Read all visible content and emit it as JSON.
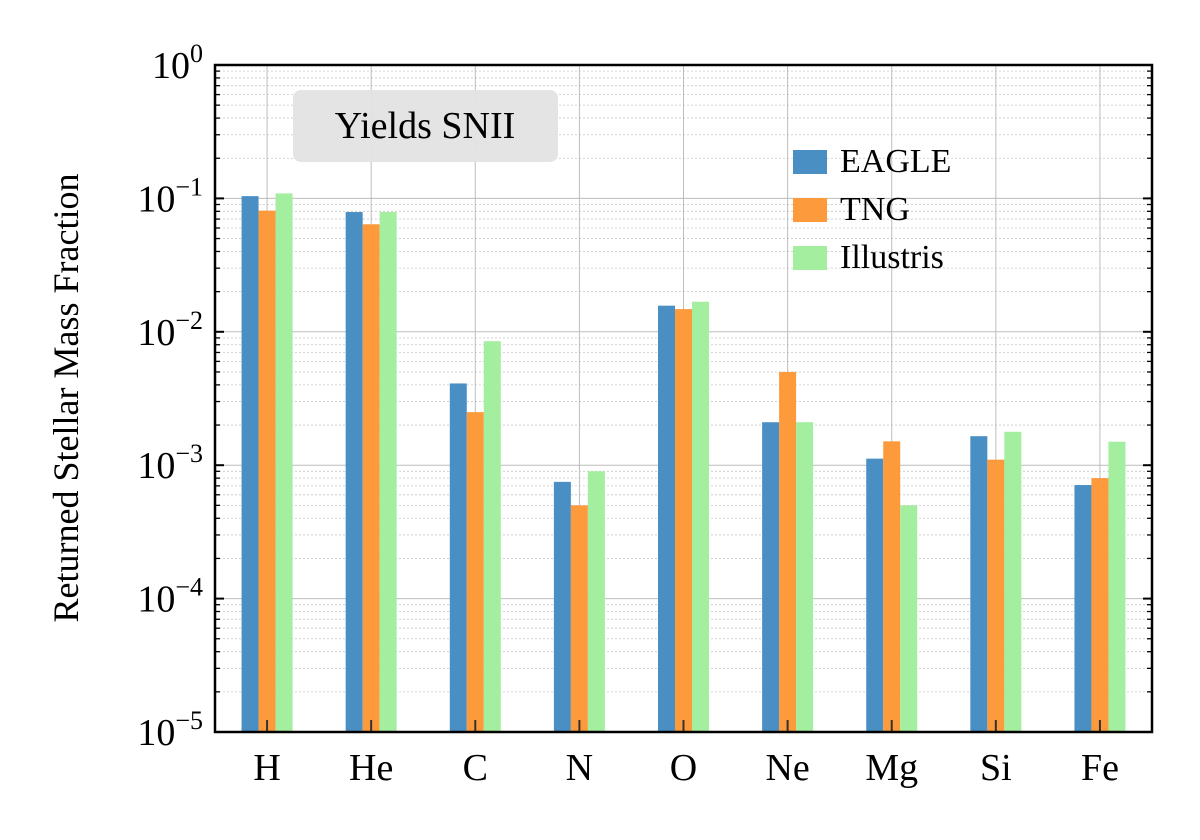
{
  "chart_data": {
    "type": "bar",
    "title": "",
    "xlabel": "",
    "ylabel": "Returned Stellar Mass Fraction",
    "yscale": "log",
    "ylim": [
      1e-05,
      1
    ],
    "yticks": [
      {
        "base": "10",
        "exp": "0",
        "value": 1
      },
      {
        "base": "10",
        "exp": "−1",
        "value": 0.1
      },
      {
        "base": "10",
        "exp": "−2",
        "value": 0.01
      },
      {
        "base": "10",
        "exp": "−3",
        "value": 0.001
      },
      {
        "base": "10",
        "exp": "−4",
        "value": 0.0001
      },
      {
        "base": "10",
        "exp": "−5",
        "value": 1e-05
      }
    ],
    "grid": true,
    "legend_position": "top-right",
    "annotation": "Yields SNII",
    "categories": [
      "H",
      "He",
      "C",
      "N",
      "O",
      "Ne",
      "Mg",
      "Si",
      "Fe"
    ],
    "series": [
      {
        "name": "EAGLE",
        "color": "#4a8fc4",
        "values": [
          0.104,
          0.079,
          0.0041,
          0.00075,
          0.0157,
          0.0021,
          0.00112,
          0.00165,
          0.00071
        ]
      },
      {
        "name": "TNG",
        "color": "#fd9a3c",
        "values": [
          0.081,
          0.064,
          0.0025,
          0.0005,
          0.0148,
          0.005,
          0.00151,
          0.0011,
          0.0008
        ]
      },
      {
        "name": "Illustris",
        "color": "#a3ee9f",
        "values": [
          0.109,
          0.079,
          0.0085,
          0.0009,
          0.0168,
          0.0021,
          0.0005,
          0.00178,
          0.0015
        ]
      }
    ]
  }
}
